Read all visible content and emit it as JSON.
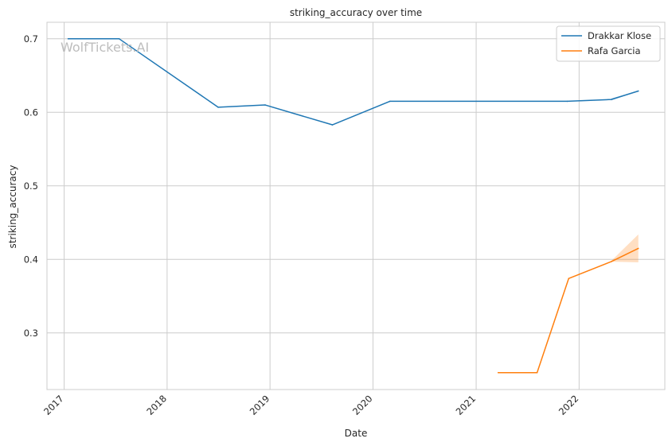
{
  "chart_data": {
    "type": "line",
    "title": "striking_accuracy over time",
    "xlabel": "Date",
    "ylabel": "striking_accuracy",
    "watermark": "WolfTickets.AI",
    "x_ticks": [
      "2017",
      "2018",
      "2019",
      "2020",
      "2021",
      "2022"
    ],
    "y_ticks": [
      "0.3",
      "0.4",
      "0.5",
      "0.6",
      "0.7"
    ],
    "xlim": [
      "2016-11-01",
      "2022-11-01"
    ],
    "ylim": [
      0.223,
      0.7225
    ],
    "grid": true,
    "legend_position": "top-right",
    "series": [
      {
        "name": "Drakkar Klose",
        "color": "#1f77b4",
        "points": [
          {
            "x": "2017-01-15",
            "y": 0.7
          },
          {
            "x": "2017-07-15",
            "y": 0.7
          },
          {
            "x": "2018-07-01",
            "y": 0.607
          },
          {
            "x": "2018-12-15",
            "y": 0.61
          },
          {
            "x": "2019-08-10",
            "y": 0.583
          },
          {
            "x": "2020-03-01",
            "y": 0.615
          },
          {
            "x": "2021-11-20",
            "y": 0.615
          },
          {
            "x": "2022-04-25",
            "y": 0.6175
          },
          {
            "x": "2022-07-30",
            "y": 0.629
          }
        ],
        "band": [
          {
            "x": "2022-04-25",
            "lo": 0.616,
            "hi": 0.619
          },
          {
            "x": "2022-07-30",
            "lo": 0.629,
            "hi": 0.629
          }
        ]
      },
      {
        "name": "Rafa Garcia",
        "color": "#ff7f0e",
        "points": [
          {
            "x": "2021-03-20",
            "y": 0.246
          },
          {
            "x": "2021-08-05",
            "y": 0.246
          },
          {
            "x": "2021-11-25",
            "y": 0.374
          },
          {
            "x": "2022-04-25",
            "y": 0.397
          },
          {
            "x": "2022-07-30",
            "y": 0.415
          }
        ],
        "band": [
          {
            "x": "2022-04-25",
            "lo": 0.397,
            "hi": 0.398
          },
          {
            "x": "2022-07-30",
            "lo": 0.396,
            "hi": 0.434
          }
        ]
      }
    ]
  }
}
